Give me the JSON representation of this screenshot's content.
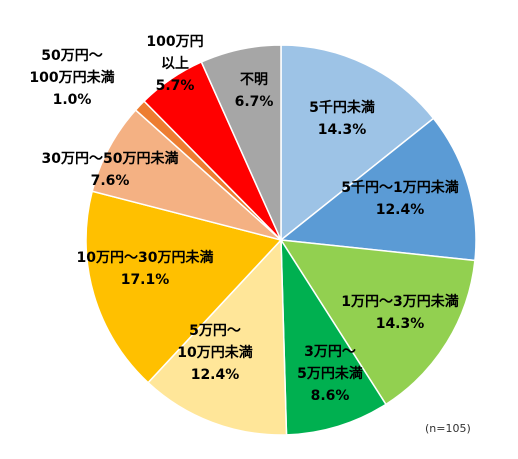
{
  "chart_data": {
    "type": "pie",
    "note": "(n=105)",
    "slices": [
      {
        "label": "5千円未満",
        "value": 14.3,
        "display": "14.3%",
        "color": "#9DC3E6"
      },
      {
        "label": "5千円～1万円未満",
        "value": 12.4,
        "display": "12.4%",
        "color": "#5B9BD5"
      },
      {
        "label": "1万円～3万円未満",
        "value": 14.3,
        "display": "14.3%",
        "color": "#92D050"
      },
      {
        "label": "3万円～5万円未満",
        "value": 8.6,
        "display": "8.6%",
        "color": "#00B050"
      },
      {
        "label": "5万円～10万円未満",
        "value": 12.4,
        "display": "12.4%",
        "color": "#FFE699"
      },
      {
        "label": "10万円～30万円未満",
        "value": 17.1,
        "display": "17.1%",
        "color": "#FFC000"
      },
      {
        "label": "30万円～50万円未満",
        "value": 7.6,
        "display": "7.6%",
        "color": "#F4B183"
      },
      {
        "label": "50万円～100万円未満",
        "value": 1.0,
        "display": "1.0%",
        "color": "#ED7D31"
      },
      {
        "label": "100万円以上",
        "value": 5.7,
        "display": "5.7%",
        "color": "#FF0000"
      },
      {
        "label": "不明",
        "value": 6.7,
        "display": "6.7%",
        "color": "#A6A6A6"
      }
    ]
  }
}
